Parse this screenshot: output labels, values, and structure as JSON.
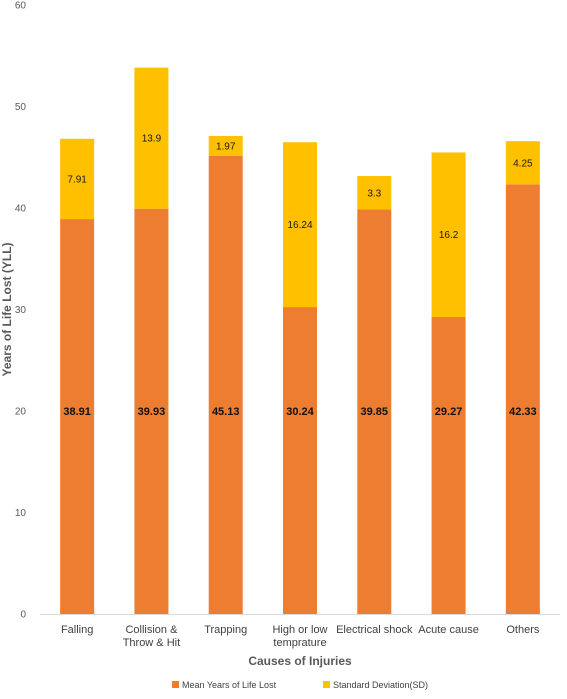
{
  "chart_data": {
    "type": "bar",
    "stacked": true,
    "categories": [
      "Falling",
      "Collision &\nThrow & Hit",
      "Trapping",
      "High or low\ntemprature",
      "Electrical shock",
      "Acute cause",
      "Others"
    ],
    "series": [
      {
        "name": "Mean Years of Life Lost",
        "values": [
          38.91,
          39.93,
          45.13,
          30.24,
          39.85,
          29.27,
          42.33
        ],
        "labels": [
          "38.91",
          "39.93",
          "45.13",
          "30.24",
          "39.85",
          "29.27",
          "42.33"
        ],
        "color": "#ED7D31"
      },
      {
        "name": "Standard Deviation(SD)",
        "values": [
          7.91,
          13.9,
          1.97,
          16.24,
          3.3,
          16.2,
          4.25
        ],
        "labels": [
          "7.91",
          "13.9",
          "1.97",
          "16.24",
          "3.3",
          "16.2",
          "4.25"
        ],
        "color": "#FFC000"
      }
    ],
    "title": "",
    "xlabel": "Causes of Injuries",
    "ylabel": "Years of Life Lost (YLL)",
    "ylim": [
      0,
      60
    ],
    "yticks": [
      0,
      10,
      20,
      30,
      40,
      50,
      60
    ],
    "grid": false,
    "legend": "bottom"
  }
}
